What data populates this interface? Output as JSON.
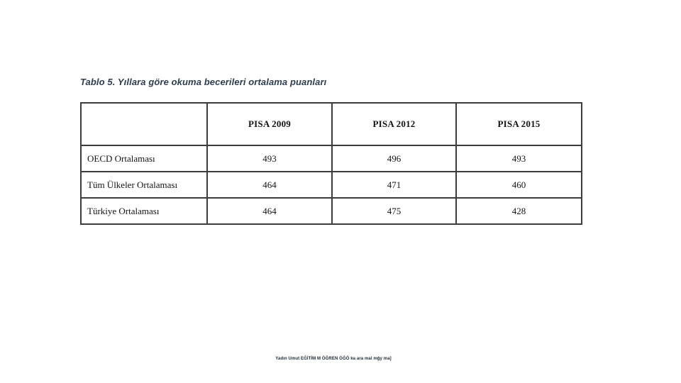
{
  "title": {
    "text": "Tablo 5. Yıllara göre okuma becerileri ortalama puanları"
  },
  "table": {
    "columns": [
      "",
      "PISA 2009",
      "PISA 2012",
      "PISA 2015"
    ],
    "rows": [
      {
        "label": "OECD Ortalaması",
        "values": [
          "493",
          "496",
          "493"
        ]
      },
      {
        "label": "Tüm Ülkeler Ortalaması",
        "values": [
          "464",
          "471",
          "460"
        ]
      },
      {
        "label": "Türkiye Ortalaması",
        "values": [
          "464",
          "475",
          "428"
        ]
      }
    ]
  },
  "chart_data": {
    "type": "table",
    "title": "Tablo 5. Yıllara göre okuma becerileri ortalama puanları",
    "categories": [
      "PISA 2009",
      "PISA 2012",
      "PISA 2015"
    ],
    "series": [
      {
        "name": "OECD Ortalaması",
        "values": [
          493,
          496,
          493
        ]
      },
      {
        "name": "Tüm Ülkeler Ortalaması",
        "values": [
          464,
          471,
          460
        ]
      },
      {
        "name": "Türkiye Ortalaması",
        "values": [
          464,
          475,
          428
        ]
      }
    ]
  },
  "footer": {
    "text": "Yadın Umut EĞİTİM M ÖĞREN ÖĞÖ ka ara mal mğy ma]"
  },
  "colors": {
    "background": "#ffffff",
    "title_text": "#2e3d4f",
    "table_border": "#3c3c3c",
    "cell_text": "#141414",
    "footer_text": "#1c2733"
  }
}
